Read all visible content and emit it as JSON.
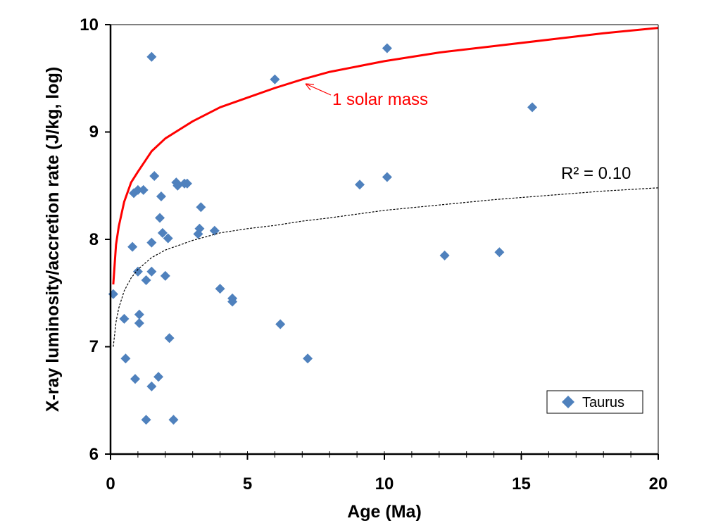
{
  "chart_data": {
    "type": "scatter",
    "title": "",
    "xlabel": "Age (Ma)",
    "ylabel": "X-ray luminosity/accretion rate (J/kg, log)",
    "xlim": [
      0,
      20
    ],
    "ylim": [
      6,
      10
    ],
    "x_ticks": [
      "0",
      "5",
      "10",
      "15",
      "20"
    ],
    "y_ticks": [
      "6",
      "7",
      "8",
      "9",
      "10"
    ],
    "grid": false,
    "legend": {
      "position": "bottom-right",
      "entries": [
        "Taurus"
      ]
    },
    "series": [
      {
        "name": "Taurus",
        "marker": "diamond",
        "color": "#4f81bd",
        "points": [
          [
            0.1,
            7.49
          ],
          [
            0.5,
            7.26
          ],
          [
            0.55,
            6.89
          ],
          [
            0.8,
            7.93
          ],
          [
            0.85,
            8.43
          ],
          [
            0.9,
            6.7
          ],
          [
            1.0,
            8.46
          ],
          [
            1.0,
            7.7
          ],
          [
            1.05,
            7.3
          ],
          [
            1.05,
            7.22
          ],
          [
            1.2,
            8.46
          ],
          [
            1.3,
            7.62
          ],
          [
            1.3,
            6.32
          ],
          [
            1.5,
            9.7
          ],
          [
            1.5,
            7.97
          ],
          [
            1.5,
            7.7
          ],
          [
            1.5,
            6.63
          ],
          [
            1.6,
            8.59
          ],
          [
            1.75,
            6.72
          ],
          [
            1.8,
            8.2
          ],
          [
            1.85,
            8.4
          ],
          [
            1.9,
            8.06
          ],
          [
            2.0,
            7.66
          ],
          [
            2.1,
            8.01
          ],
          [
            2.15,
            7.08
          ],
          [
            2.3,
            6.32
          ],
          [
            2.4,
            8.53
          ],
          [
            2.45,
            8.5
          ],
          [
            2.7,
            8.52
          ],
          [
            2.8,
            8.52
          ],
          [
            3.2,
            8.05
          ],
          [
            3.25,
            8.1
          ],
          [
            3.3,
            8.3
          ],
          [
            3.8,
            8.08
          ],
          [
            4.0,
            7.54
          ],
          [
            4.45,
            7.45
          ],
          [
            4.45,
            7.42
          ],
          [
            6.0,
            9.49
          ],
          [
            6.2,
            7.21
          ],
          [
            7.2,
            6.89
          ],
          [
            9.1,
            8.51
          ],
          [
            10.1,
            9.78
          ],
          [
            10.1,
            8.58
          ],
          [
            12.2,
            7.85
          ],
          [
            14.2,
            7.88
          ],
          [
            15.4,
            9.23
          ]
        ]
      }
    ],
    "curves": [
      {
        "name": "1 solar mass",
        "color": "#ff0000",
        "style": "solid",
        "points": [
          [
            0.1,
            7.58
          ],
          [
            0.2,
            7.95
          ],
          [
            0.3,
            8.12
          ],
          [
            0.5,
            8.35
          ],
          [
            0.75,
            8.53
          ],
          [
            1,
            8.63
          ],
          [
            1.5,
            8.82
          ],
          [
            2,
            8.94
          ],
          [
            3,
            9.1
          ],
          [
            4,
            9.23
          ],
          [
            5,
            9.32
          ],
          [
            6,
            9.41
          ],
          [
            7,
            9.49
          ],
          [
            8,
            9.56
          ],
          [
            10,
            9.66
          ],
          [
            12,
            9.74
          ],
          [
            14,
            9.8
          ],
          [
            16,
            9.86
          ],
          [
            18,
            9.92
          ],
          [
            20,
            9.97
          ]
        ]
      },
      {
        "name": "trendline",
        "color": "#000000",
        "style": "dotted",
        "points": [
          [
            0.1,
            7.0
          ],
          [
            0.2,
            7.23
          ],
          [
            0.3,
            7.36
          ],
          [
            0.5,
            7.52
          ],
          [
            0.75,
            7.64
          ],
          [
            1,
            7.72
          ],
          [
            1.5,
            7.83
          ],
          [
            2,
            7.9
          ],
          [
            3,
            7.99
          ],
          [
            4,
            8.06
          ],
          [
            5,
            8.1
          ],
          [
            6,
            8.13
          ],
          [
            7,
            8.17
          ],
          [
            8,
            8.2
          ],
          [
            10,
            8.27
          ],
          [
            12,
            8.32
          ],
          [
            14,
            8.37
          ],
          [
            16,
            8.41
          ],
          [
            18,
            8.45
          ],
          [
            20,
            8.48
          ]
        ]
      }
    ],
    "annotations": [
      {
        "text": "1 solar mass",
        "color": "#ff0000",
        "arrow_to": [
          7.0,
          9.5
        ]
      },
      {
        "text": "R² = 0.10",
        "color": "#000000"
      }
    ]
  }
}
